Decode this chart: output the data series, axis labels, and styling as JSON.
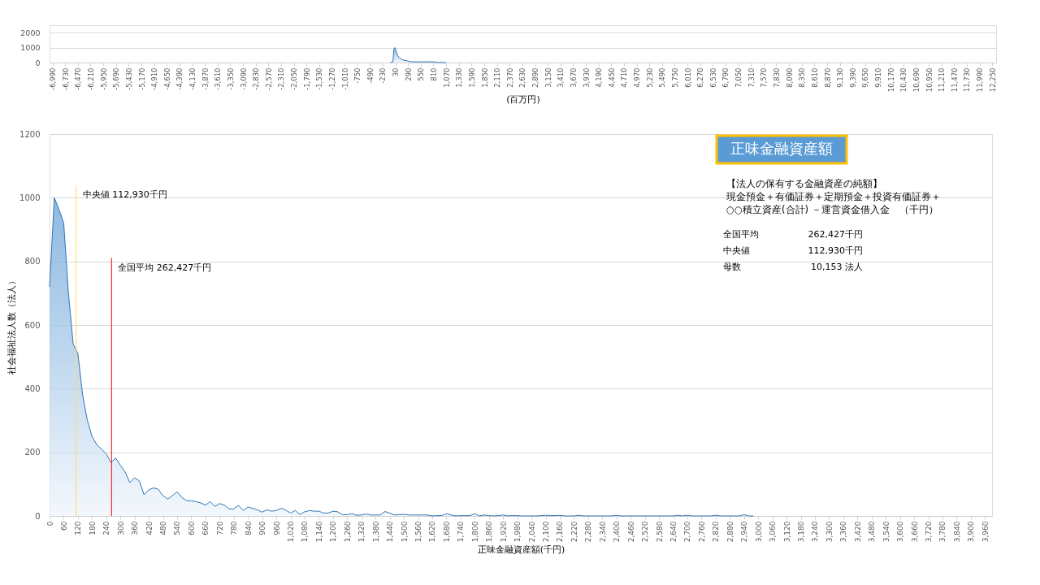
{
  "chart_data": [
    {
      "type": "area",
      "xlabel": "(百万円)",
      "series": [
        {
          "color": "#5b9bd5",
          "x": [
            -70,
            -20,
            0,
            20,
            50,
            80,
            110,
            160,
            220,
            290,
            360,
            430,
            550,
            700,
            810,
            900,
            1000,
            1070
          ],
          "values": [
            0,
            50,
            900,
            1000,
            700,
            450,
            350,
            200,
            150,
            100,
            50,
            50,
            50,
            50,
            50,
            0,
            0,
            0
          ]
        }
      ],
      "xlim": [
        -7050,
        12330
      ],
      "ylim": [
        0,
        2500
      ],
      "yticks": [
        0,
        1000,
        2000
      ],
      "grid": "y",
      "xticks": [
        {
          "value": -6990,
          "label": "-6,990"
        },
        {
          "value": -6730,
          "label": "-6,730"
        },
        {
          "value": -6470,
          "label": "-6,470"
        },
        {
          "value": -6210,
          "label": "-6,210"
        },
        {
          "value": -5950,
          "label": "-5,950"
        },
        {
          "value": -5690,
          "label": "-5,690"
        },
        {
          "value": -5430,
          "label": "-5,430"
        },
        {
          "value": -5170,
          "label": "-5,170"
        },
        {
          "value": -4910,
          "label": "-4,910"
        },
        {
          "value": -4650,
          "label": "-4,650"
        },
        {
          "value": -4390,
          "label": "-4,390"
        },
        {
          "value": -4130,
          "label": "-4,130"
        },
        {
          "value": -3870,
          "label": "-3,870"
        },
        {
          "value": -3610,
          "label": "-3,610"
        },
        {
          "value": -3350,
          "label": "-3,350"
        },
        {
          "value": -3090,
          "label": "-3,090"
        },
        {
          "value": -2830,
          "label": "-2,830"
        },
        {
          "value": -2570,
          "label": "-2,570"
        },
        {
          "value": -2310,
          "label": "-2,310"
        },
        {
          "value": -2050,
          "label": "-2,050"
        },
        {
          "value": -1790,
          "label": "-1,790"
        },
        {
          "value": -1530,
          "label": "-1,530"
        },
        {
          "value": -1270,
          "label": "-1,270"
        },
        {
          "value": -1010,
          "label": "-1,010"
        },
        -750,
        -490,
        -230,
        30,
        290,
        550,
        810,
        {
          "value": 1070,
          "label": "1,070"
        },
        {
          "value": 1330,
          "label": "1,330"
        },
        {
          "value": 1590,
          "label": "1,590"
        },
        {
          "value": 1850,
          "label": "1,850"
        },
        {
          "value": 2110,
          "label": "2,110"
        },
        {
          "value": 2370,
          "label": "2,370"
        },
        {
          "value": 2630,
          "label": "2,630"
        },
        {
          "value": 2890,
          "label": "2,890"
        },
        {
          "value": 3150,
          "label": "3,150"
        },
        {
          "value": 3410,
          "label": "3,410"
        },
        {
          "value": 3670,
          "label": "3,670"
        },
        {
          "value": 3930,
          "label": "3,930"
        },
        {
          "value": 4190,
          "label": "4,190"
        },
        {
          "value": 4450,
          "label": "4,450"
        },
        {
          "value": 4710,
          "label": "4,710"
        },
        {
          "value": 4970,
          "label": "4,970"
        },
        {
          "value": 5230,
          "label": "5,230"
        },
        {
          "value": 5490,
          "label": "5,490"
        },
        {
          "value": 5750,
          "label": "5,750"
        },
        {
          "value": 6010,
          "label": "6,010"
        },
        {
          "value": 6270,
          "label": "6,270"
        },
        {
          "value": 6530,
          "label": "6,530"
        },
        {
          "value": 6790,
          "label": "6,790"
        },
        {
          "value": 7050,
          "label": "7,050"
        },
        {
          "value": 7310,
          "label": "7,310"
        },
        {
          "value": 7570,
          "label": "7,570"
        },
        {
          "value": 7830,
          "label": "7,830"
        },
        {
          "value": 8090,
          "label": "8,090"
        },
        {
          "value": 8350,
          "label": "8,350"
        },
        {
          "value": 8610,
          "label": "8,610"
        },
        {
          "value": 8870,
          "label": "8,870"
        },
        {
          "value": 9130,
          "label": "9,130"
        },
        {
          "value": 9390,
          "label": "9,390"
        },
        {
          "value": 9650,
          "label": "9,650"
        },
        {
          "value": 9910,
          "label": "9,910"
        },
        {
          "value": 10170,
          "label": "10,170"
        },
        {
          "value": 10430,
          "label": "10,430"
        },
        {
          "value": 10690,
          "label": "10,690"
        },
        {
          "value": 10950,
          "label": "10,950"
        },
        {
          "value": 11210,
          "label": "11,210"
        },
        {
          "value": 11470,
          "label": "11,470"
        },
        {
          "value": 11730,
          "label": "11,730"
        },
        {
          "value": 11990,
          "label": "11,990"
        },
        {
          "value": 12250,
          "label": "12,250"
        }
      ]
    },
    {
      "type": "area",
      "xlabel": "正味金融資産額(千円)",
      "ylabel": "社会福祉法人数（法人）",
      "x": [
        0,
        20,
        40,
        60,
        80,
        100,
        120,
        140,
        160,
        180,
        200,
        220,
        240,
        260,
        280,
        300,
        320,
        340,
        360,
        380,
        400,
        420,
        440,
        460,
        480,
        500,
        520,
        540,
        560,
        580,
        600,
        620,
        640,
        660,
        680,
        700,
        720,
        740,
        760,
        780,
        800,
        820,
        840,
        860,
        880,
        900,
        920,
        940,
        960,
        980,
        1000,
        1020,
        1040,
        1060,
        1080,
        1100,
        1120,
        1140,
        1160,
        1180,
        1200,
        1220,
        1240,
        1260,
        1280,
        1300,
        1320,
        1340,
        1360,
        1380,
        1400,
        1420,
        1440,
        1460,
        1480,
        1500,
        1520,
        1540,
        1560,
        1580,
        1600,
        1620,
        1640,
        1660,
        1680,
        1700,
        1720,
        1740,
        1760,
        1780,
        1800,
        1820,
        1840,
        1860,
        1880,
        1900,
        1920,
        1940,
        1960,
        1980,
        2000,
        2020,
        2040,
        2060,
        2080,
        2100,
        2120,
        2140,
        2160,
        2180,
        2200,
        2220,
        2240,
        2260,
        2280,
        2300,
        2320,
        2340,
        2360,
        2380,
        2400,
        2420,
        2440,
        2460,
        2480,
        2500,
        2520,
        2540,
        2560,
        2580,
        2600,
        2620,
        2640,
        2660,
        2680,
        2700,
        2720,
        2740,
        2760,
        2780,
        2800,
        2820,
        2840,
        2860,
        2880,
        2900,
        2920,
        2940,
        2960,
        2980
      ],
      "series": [
        {
          "color": "#5b9bd5",
          "values": [
            720,
            1000,
            963,
            920,
            700,
            540,
            510,
            380,
            300,
            250,
            224,
            210,
            195,
            168,
            182,
            159,
            138,
            105,
            120,
            110,
            67,
            82,
            88,
            84,
            64,
            53,
            64,
            76,
            58,
            48,
            47,
            45,
            41,
            34,
            45,
            30,
            39,
            34,
            22,
            22,
            33,
            17,
            28,
            24,
            19,
            12,
            19,
            15,
            17,
            24,
            18,
            9,
            17,
            4,
            13,
            17,
            15,
            15,
            9,
            9,
            15,
            13,
            4,
            4,
            7,
            2,
            3,
            6,
            3,
            3,
            3,
            14,
            9,
            3,
            4,
            5,
            3,
            3,
            3,
            3,
            3,
            0,
            1,
            1,
            7,
            3,
            0,
            1,
            1,
            1,
            7,
            0,
            3,
            1,
            0,
            1,
            3,
            0,
            1,
            1,
            0,
            0,
            0,
            0,
            1,
            2,
            1,
            1,
            2,
            0,
            0,
            0,
            2,
            0,
            0,
            0,
            0,
            0,
            0,
            0,
            2,
            0,
            0,
            0,
            0,
            0,
            0,
            0,
            0,
            0,
            0,
            0,
            0,
            2,
            0,
            2,
            0,
            0,
            0,
            0,
            0,
            2,
            0,
            0,
            0,
            0,
            0,
            4,
            0,
            0
          ]
        }
      ],
      "xlim": [
        0,
        3990
      ],
      "ylim": [
        0,
        1200
      ],
      "yticks": [
        0,
        200,
        400,
        600,
        800,
        1000,
        1200
      ],
      "grid": "y",
      "xticks": [
        0,
        60,
        120,
        180,
        240,
        300,
        360,
        420,
        480,
        540,
        600,
        660,
        720,
        780,
        840,
        900,
        960,
        {
          "value": 1020,
          "label": "1,020"
        },
        {
          "value": 1080,
          "label": "1,080"
        },
        {
          "value": 1140,
          "label": "1,140"
        },
        {
          "value": 1200,
          "label": "1,200"
        },
        {
          "value": 1260,
          "label": "1,260"
        },
        {
          "value": 1320,
          "label": "1,320"
        },
        {
          "value": 1380,
          "label": "1,380"
        },
        {
          "value": 1440,
          "label": "1,440"
        },
        {
          "value": 1500,
          "label": "1,500"
        },
        {
          "value": 1560,
          "label": "1,560"
        },
        {
          "value": 1620,
          "label": "1,620"
        },
        {
          "value": 1680,
          "label": "1,680"
        },
        {
          "value": 1740,
          "label": "1,740"
        },
        {
          "value": 1800,
          "label": "1,800"
        },
        {
          "value": 1860,
          "label": "1,860"
        },
        {
          "value": 1920,
          "label": "1,920"
        },
        {
          "value": 1980,
          "label": "1,980"
        },
        {
          "value": 2040,
          "label": "2,040"
        },
        {
          "value": 2100,
          "label": "2,100"
        },
        {
          "value": 2160,
          "label": "2,160"
        },
        {
          "value": 2220,
          "label": "2,220"
        },
        {
          "value": 2280,
          "label": "2,280"
        },
        {
          "value": 2340,
          "label": "2,340"
        },
        {
          "value": 2400,
          "label": "2,400"
        },
        {
          "value": 2460,
          "label": "2,460"
        },
        {
          "value": 2520,
          "label": "2,520"
        },
        {
          "value": 2580,
          "label": "2,580"
        },
        {
          "value": 2640,
          "label": "2,640"
        },
        {
          "value": 2700,
          "label": "2,700"
        },
        {
          "value": 2760,
          "label": "2,760"
        },
        {
          "value": 2820,
          "label": "2,820"
        },
        {
          "value": 2880,
          "label": "2,880"
        },
        {
          "value": 2940,
          "label": "2,940"
        },
        {
          "value": 3000,
          "label": "3,000"
        },
        {
          "value": 3060,
          "label": "3,060"
        },
        {
          "value": 3120,
          "label": "3,120"
        },
        {
          "value": 3180,
          "label": "3,180"
        },
        {
          "value": 3240,
          "label": "3,240"
        },
        {
          "value": 3300,
          "label": "3,300"
        },
        {
          "value": 3360,
          "label": "3,360"
        },
        {
          "value": 3420,
          "label": "3,420"
        },
        {
          "value": 3480,
          "label": "3,480"
        },
        {
          "value": 3540,
          "label": "3,540"
        },
        {
          "value": 3600,
          "label": "3,600"
        },
        {
          "value": 3660,
          "label": "3,660"
        },
        {
          "value": 3720,
          "label": "3,720"
        },
        {
          "value": 3780,
          "label": "3,780"
        },
        {
          "value": 3840,
          "label": "3,840"
        },
        {
          "value": 3900,
          "label": "3,900"
        },
        {
          "value": 3960,
          "label": "3,960"
        }
      ],
      "ref_lines": [
        {
          "axis": "x",
          "value": 112.93,
          "label": "中央値  112,930千円",
          "color": "#ffd966"
        },
        {
          "axis": "x",
          "value": 262.427,
          "label": "全国平均  262,427千円",
          "color": "#ff0000"
        }
      ]
    },
    {
      "type": "other",
      "title": "正味金融資産額",
      "annotations": [
        "【法人の保有する金融資産の純額】",
        "現金預金＋有価証券＋定期預金＋投資有価証券＋",
        "○○積立資産(合計) －運営資金借入金　（千円）",
        "全国平均",
        "262,427千円",
        "中央値",
        "112,930千円",
        "母数",
        "10,153  法人"
      ]
    }
  ]
}
